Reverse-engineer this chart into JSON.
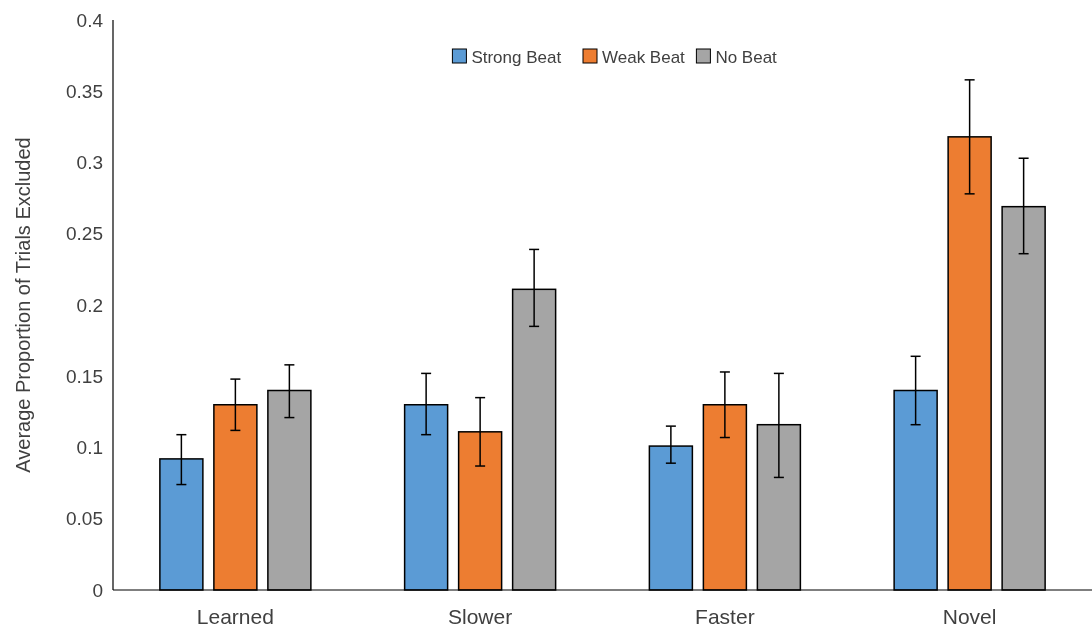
{
  "chart_data": {
    "type": "bar",
    "ylabel": "Average Proportion of Trials Excluded",
    "categories": [
      "Learned",
      "Slower",
      "Faster",
      "Novel"
    ],
    "series": [
      {
        "name": "Strong Beat",
        "color": "#5b9bd5",
        "values": [
          0.092,
          0.13,
          0.101,
          0.14
        ],
        "errors": [
          [
            0.074,
            0.109
          ],
          [
            0.109,
            0.152
          ],
          [
            0.089,
            0.115
          ],
          [
            0.116,
            0.164
          ]
        ]
      },
      {
        "name": "Weak Beat",
        "color": "#ed7d31",
        "values": [
          0.13,
          0.111,
          0.13,
          0.318
        ],
        "errors": [
          [
            0.112,
            0.148
          ],
          [
            0.087,
            0.135
          ],
          [
            0.107,
            0.153
          ],
          [
            0.278,
            0.358
          ]
        ]
      },
      {
        "name": "No Beat",
        "color": "#a5a5a5",
        "values": [
          0.14,
          0.211,
          0.116,
          0.269
        ],
        "errors": [
          [
            0.121,
            0.158
          ],
          [
            0.185,
            0.239
          ],
          [
            0.079,
            0.152
          ],
          [
            0.236,
            0.303
          ]
        ]
      }
    ],
    "ylim": [
      0,
      0.4
    ],
    "yticks": [
      0,
      0.05,
      0.1,
      0.15,
      0.2,
      0.25,
      0.3,
      0.35,
      0.4
    ],
    "grid": false,
    "legend": "top"
  }
}
